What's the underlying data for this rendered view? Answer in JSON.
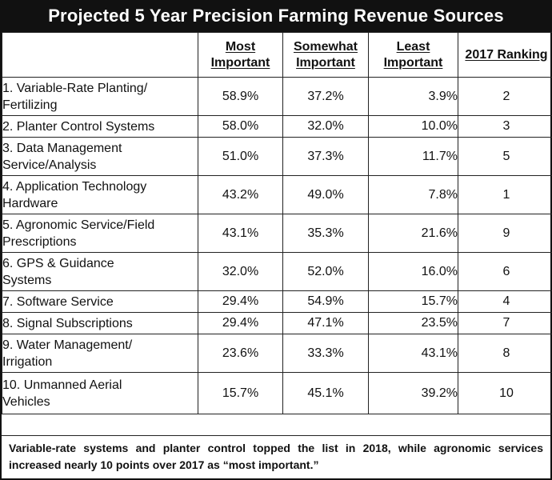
{
  "chart_data": {
    "type": "table",
    "title": "Projected 5 Year Precision Farming Revenue Sources",
    "columns": [
      {
        "key": "label",
        "text": ""
      },
      {
        "key": "most",
        "text": "Most Important"
      },
      {
        "key": "somewhat",
        "text": "Somewhat Important"
      },
      {
        "key": "least",
        "text": "Least Important"
      },
      {
        "key": "rank2017",
        "text": "2017 Ranking"
      }
    ],
    "rows": [
      {
        "label": "1. Variable-Rate Planting/ Fertilizing",
        "most": "58.9%",
        "somewhat": "37.2%",
        "least": "3.9%",
        "rank2017": "2"
      },
      {
        "label": "2. Planter Control Systems",
        "most": "58.0%",
        "somewhat": "32.0%",
        "least": "10.0%",
        "rank2017": "3"
      },
      {
        "label": "3. Data Management Service/Analysis",
        "most": "51.0%",
        "somewhat": "37.3%",
        "least": "11.7%",
        "rank2017": "5"
      },
      {
        "label": "4. Application Technology Hardware",
        "most": "43.2%",
        "somewhat": "49.0%",
        "least": "7.8%",
        "rank2017": "1"
      },
      {
        "label": "5. Agronomic Service/Field Prescriptions",
        "most": "43.1%",
        "somewhat": "35.3%",
        "least": "21.6%",
        "rank2017": "9"
      },
      {
        "label": "6. GPS & Guidance Systems",
        "most": "32.0%",
        "somewhat": "52.0%",
        "least": "16.0%",
        "rank2017": "6"
      },
      {
        "label": "7. Software Service",
        "most": "29.4%",
        "somewhat": "54.9%",
        "least": "15.7%",
        "rank2017": "4"
      },
      {
        "label": "8. Signal Subscriptions",
        "most": "29.4%",
        "somewhat": "47.1%",
        "least": "23.5%",
        "rank2017": "7"
      },
      {
        "label": "9. Water Management/ Irrigation",
        "most": "23.6%",
        "somewhat": "33.3%",
        "least": "43.1%",
        "rank2017": "8"
      },
      {
        "label": "10. Unmanned Aerial Vehicles",
        "most": "15.7%",
        "somewhat": "45.1%",
        "least": "39.2%",
        "rank2017": "10"
      }
    ],
    "caption": "Variable-rate systems and planter control topped the list in 2018, while agronomic services increased nearly 10 points over 2017 as “most important.”"
  },
  "header": {
    "most_l1": "Most",
    "most_l2": "Important",
    "somewhat_l1": "Somewhat",
    "somewhat_l2": "Important",
    "least_l1": "Least",
    "least_l2": "Important",
    "rank": "2017 Ranking"
  },
  "labels": [
    [
      "1. Variable-Rate Planting/",
      "Fertilizing"
    ],
    [
      "2. Planter Control Systems"
    ],
    [
      "3. Data Management",
      "Service/Analysis"
    ],
    [
      "4. Application Technology",
      "Hardware"
    ],
    [
      "5. Agronomic Service/Field",
      "Prescriptions"
    ],
    [
      "6. GPS & Guidance",
      "Systems"
    ],
    [
      "7. Software Service"
    ],
    [
      "8. Signal Subscriptions"
    ],
    [
      "9. Water Management/",
      "Irrigation"
    ],
    [
      "10. Unmanned Aerial",
      "Vehicles"
    ]
  ]
}
